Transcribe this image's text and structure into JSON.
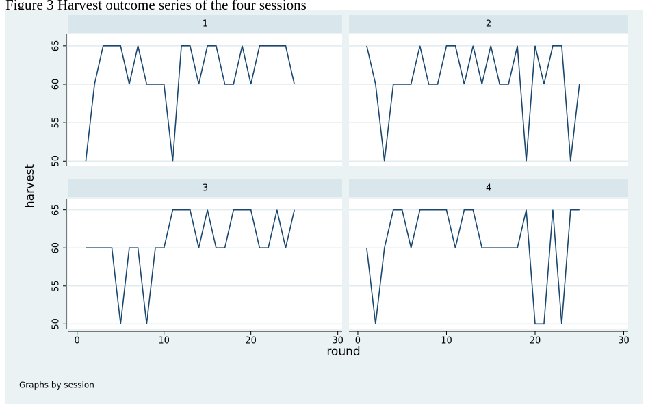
{
  "figure_title": "Figure 3 Harvest outcome series of the four sessions",
  "y_label": "harvest",
  "x_label": "round",
  "note": "Graphs by session",
  "chart_data": [
    {
      "type": "line",
      "title": "1",
      "color": "#1a476f",
      "grid": true,
      "x": [
        1,
        2,
        3,
        4,
        5,
        6,
        7,
        8,
        9,
        10,
        11,
        12,
        13,
        14,
        15,
        16,
        17,
        18,
        19,
        20,
        21,
        22,
        23,
        24,
        25
      ],
      "values": [
        50,
        60,
        65,
        65,
        65,
        60,
        65,
        60,
        60,
        60,
        50,
        65,
        65,
        60,
        65,
        65,
        60,
        60,
        65,
        60,
        65,
        65,
        65,
        65,
        60
      ],
      "xlim": [
        -1,
        30.5
      ],
      "ylim": [
        49.4,
        66.5
      ],
      "xticks": [
        0,
        10,
        20,
        30
      ],
      "yticks": [
        50,
        55,
        60,
        65
      ]
    },
    {
      "type": "line",
      "title": "2",
      "color": "#1a476f",
      "grid": true,
      "x": [
        1,
        2,
        3,
        4,
        5,
        6,
        7,
        8,
        9,
        10,
        11,
        12,
        13,
        14,
        15,
        16,
        17,
        18,
        19,
        20,
        21,
        22,
        23,
        24,
        25
      ],
      "values": [
        65,
        60,
        50,
        60,
        60,
        60,
        65,
        60,
        60,
        65,
        65,
        60,
        65,
        60,
        65,
        60,
        60,
        65,
        50,
        65,
        60,
        65,
        65,
        50,
        60
      ],
      "xlim": [
        -1,
        30.5
      ],
      "ylim": [
        49.4,
        66.5
      ],
      "xticks": [
        0,
        10,
        20,
        30
      ],
      "yticks": [
        50,
        55,
        60,
        65
      ]
    },
    {
      "type": "line",
      "title": "3",
      "color": "#1a476f",
      "grid": true,
      "x": [
        1,
        2,
        3,
        4,
        5,
        6,
        7,
        8,
        9,
        10,
        11,
        12,
        13,
        14,
        15,
        16,
        17,
        18,
        19,
        20,
        21,
        22,
        23,
        24,
        25
      ],
      "values": [
        60,
        60,
        60,
        60,
        50,
        60,
        60,
        50,
        60,
        60,
        65,
        65,
        65,
        60,
        65,
        60,
        60,
        65,
        65,
        65,
        60,
        60,
        65,
        60,
        65
      ],
      "xlim": [
        -1,
        30.5
      ],
      "ylim": [
        49.4,
        66.5
      ],
      "xticks": [
        0,
        10,
        20,
        30
      ],
      "yticks": [
        50,
        55,
        60,
        65
      ]
    },
    {
      "type": "line",
      "title": "4",
      "color": "#1a476f",
      "grid": true,
      "x": [
        1,
        2,
        3,
        4,
        5,
        6,
        7,
        8,
        9,
        10,
        11,
        12,
        13,
        14,
        15,
        16,
        17,
        18,
        19,
        20,
        21,
        22,
        23,
        24,
        25
      ],
      "values": [
        60,
        50,
        60,
        65,
        65,
        60,
        65,
        65,
        65,
        65,
        60,
        65,
        65,
        60,
        60,
        60,
        60,
        60,
        65,
        50,
        50,
        65,
        50,
        65,
        65
      ],
      "xlim": [
        -1,
        30.5
      ],
      "ylim": [
        49.4,
        66.5
      ],
      "xticks": [
        0,
        10,
        20,
        30
      ],
      "yticks": [
        50,
        55,
        60,
        65
      ]
    }
  ]
}
